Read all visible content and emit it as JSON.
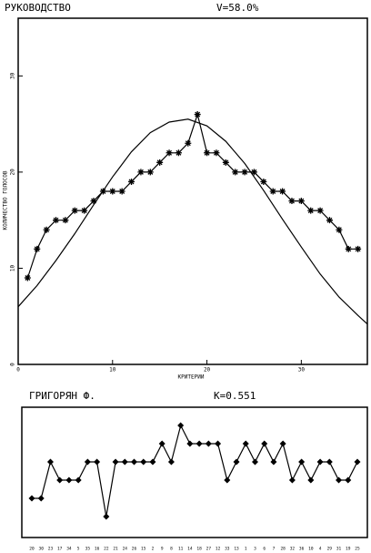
{
  "chart_data": [
    {
      "type": "line",
      "title": "РУКОВОДСТВО",
      "subtitle": "V=58.0%",
      "xlabel": "КРИТЕРИИ",
      "ylabel": "КОЛИЧЕСТВО ГОЛОСОВ",
      "xlim": [
        0,
        37
      ],
      "ylim": [
        0,
        36
      ],
      "xticks": [
        0,
        10,
        20,
        30
      ],
      "yticks": [
        0,
        10,
        20,
        30
      ],
      "series": [
        {
          "color": "#000000",
          "marker": "asterisk",
          "x": [
            1,
            2,
            3,
            4,
            5,
            6,
            7,
            8,
            9,
            10,
            11,
            12,
            13,
            14,
            15,
            16,
            17,
            18,
            19,
            20,
            21,
            22,
            23,
            24,
            25,
            26,
            27,
            28,
            29,
            30,
            31,
            32,
            33,
            34,
            35,
            36
          ],
          "values": [
            9,
            12,
            14,
            15,
            15,
            16,
            16,
            17,
            18,
            18,
            18,
            19,
            20,
            20,
            21,
            22,
            22,
            23,
            26,
            22,
            22,
            21,
            20,
            20,
            20,
            19,
            18,
            18,
            17,
            17,
            16,
            16,
            15,
            14,
            12,
            12
          ]
        },
        {
          "color": "#000000",
          "marker": "none",
          "x": [
            0,
            2,
            4,
            6,
            8,
            10,
            12,
            14,
            16,
            18,
            20,
            22,
            24,
            26,
            28,
            30,
            32,
            34,
            36,
            37
          ],
          "values": [
            6.0,
            8.2,
            10.8,
            13.6,
            16.6,
            19.5,
            22.1,
            24.1,
            25.2,
            25.5,
            24.8,
            23.2,
            20.9,
            18.1,
            15.1,
            12.2,
            9.4,
            7.0,
            5.1,
            4.2
          ]
        }
      ]
    },
    {
      "type": "line",
      "title": "ГРИГОРЯН Ф.",
      "subtitle": "K=0.551",
      "ylim": [
        -1.15,
        6
      ],
      "color": "#000000",
      "marker": "diamond",
      "categories": [
        "20",
        "30",
        "23",
        "17",
        "34",
        "5",
        "35",
        "16",
        "22",
        "21",
        "24",
        "26",
        "15",
        "2",
        "9",
        "8",
        "11",
        "14",
        "18",
        "27",
        "12",
        "33",
        "13",
        "1",
        "3",
        "6",
        "7",
        "28",
        "32",
        "36",
        "10",
        "4",
        "29",
        "31",
        "19",
        "25"
      ],
      "values": [
        1,
        1,
        3,
        2,
        2,
        2,
        3,
        3,
        0,
        3,
        3,
        3,
        3,
        3,
        4,
        3,
        5,
        4,
        4,
        4,
        4,
        2,
        3,
        4,
        3,
        4,
        3,
        4,
        2,
        3,
        2,
        3,
        3,
        2,
        2,
        3
      ]
    }
  ]
}
